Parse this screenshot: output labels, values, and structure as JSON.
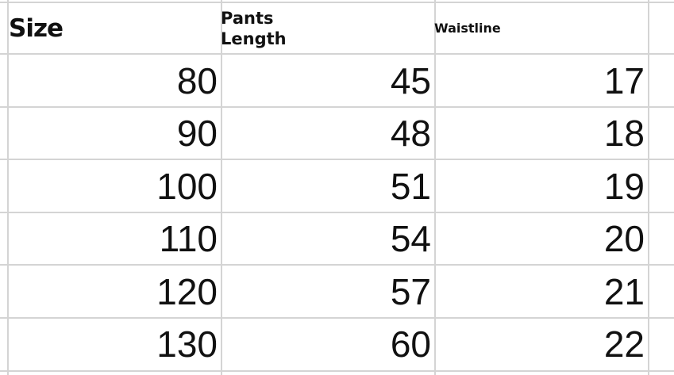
{
  "headers": [
    "Size",
    "Pants Length",
    "Waistline"
  ],
  "header_lines": {
    "pants_1": "Pants",
    "pants_2": "Length"
  },
  "rows": [
    [
      "80",
      "45",
      "17"
    ],
    [
      "90",
      "48",
      "18"
    ],
    [
      "100",
      "51",
      "19"
    ],
    [
      "110",
      "54",
      "20"
    ],
    [
      "120",
      "57",
      "21"
    ],
    [
      "130",
      "60",
      "22"
    ]
  ]
}
